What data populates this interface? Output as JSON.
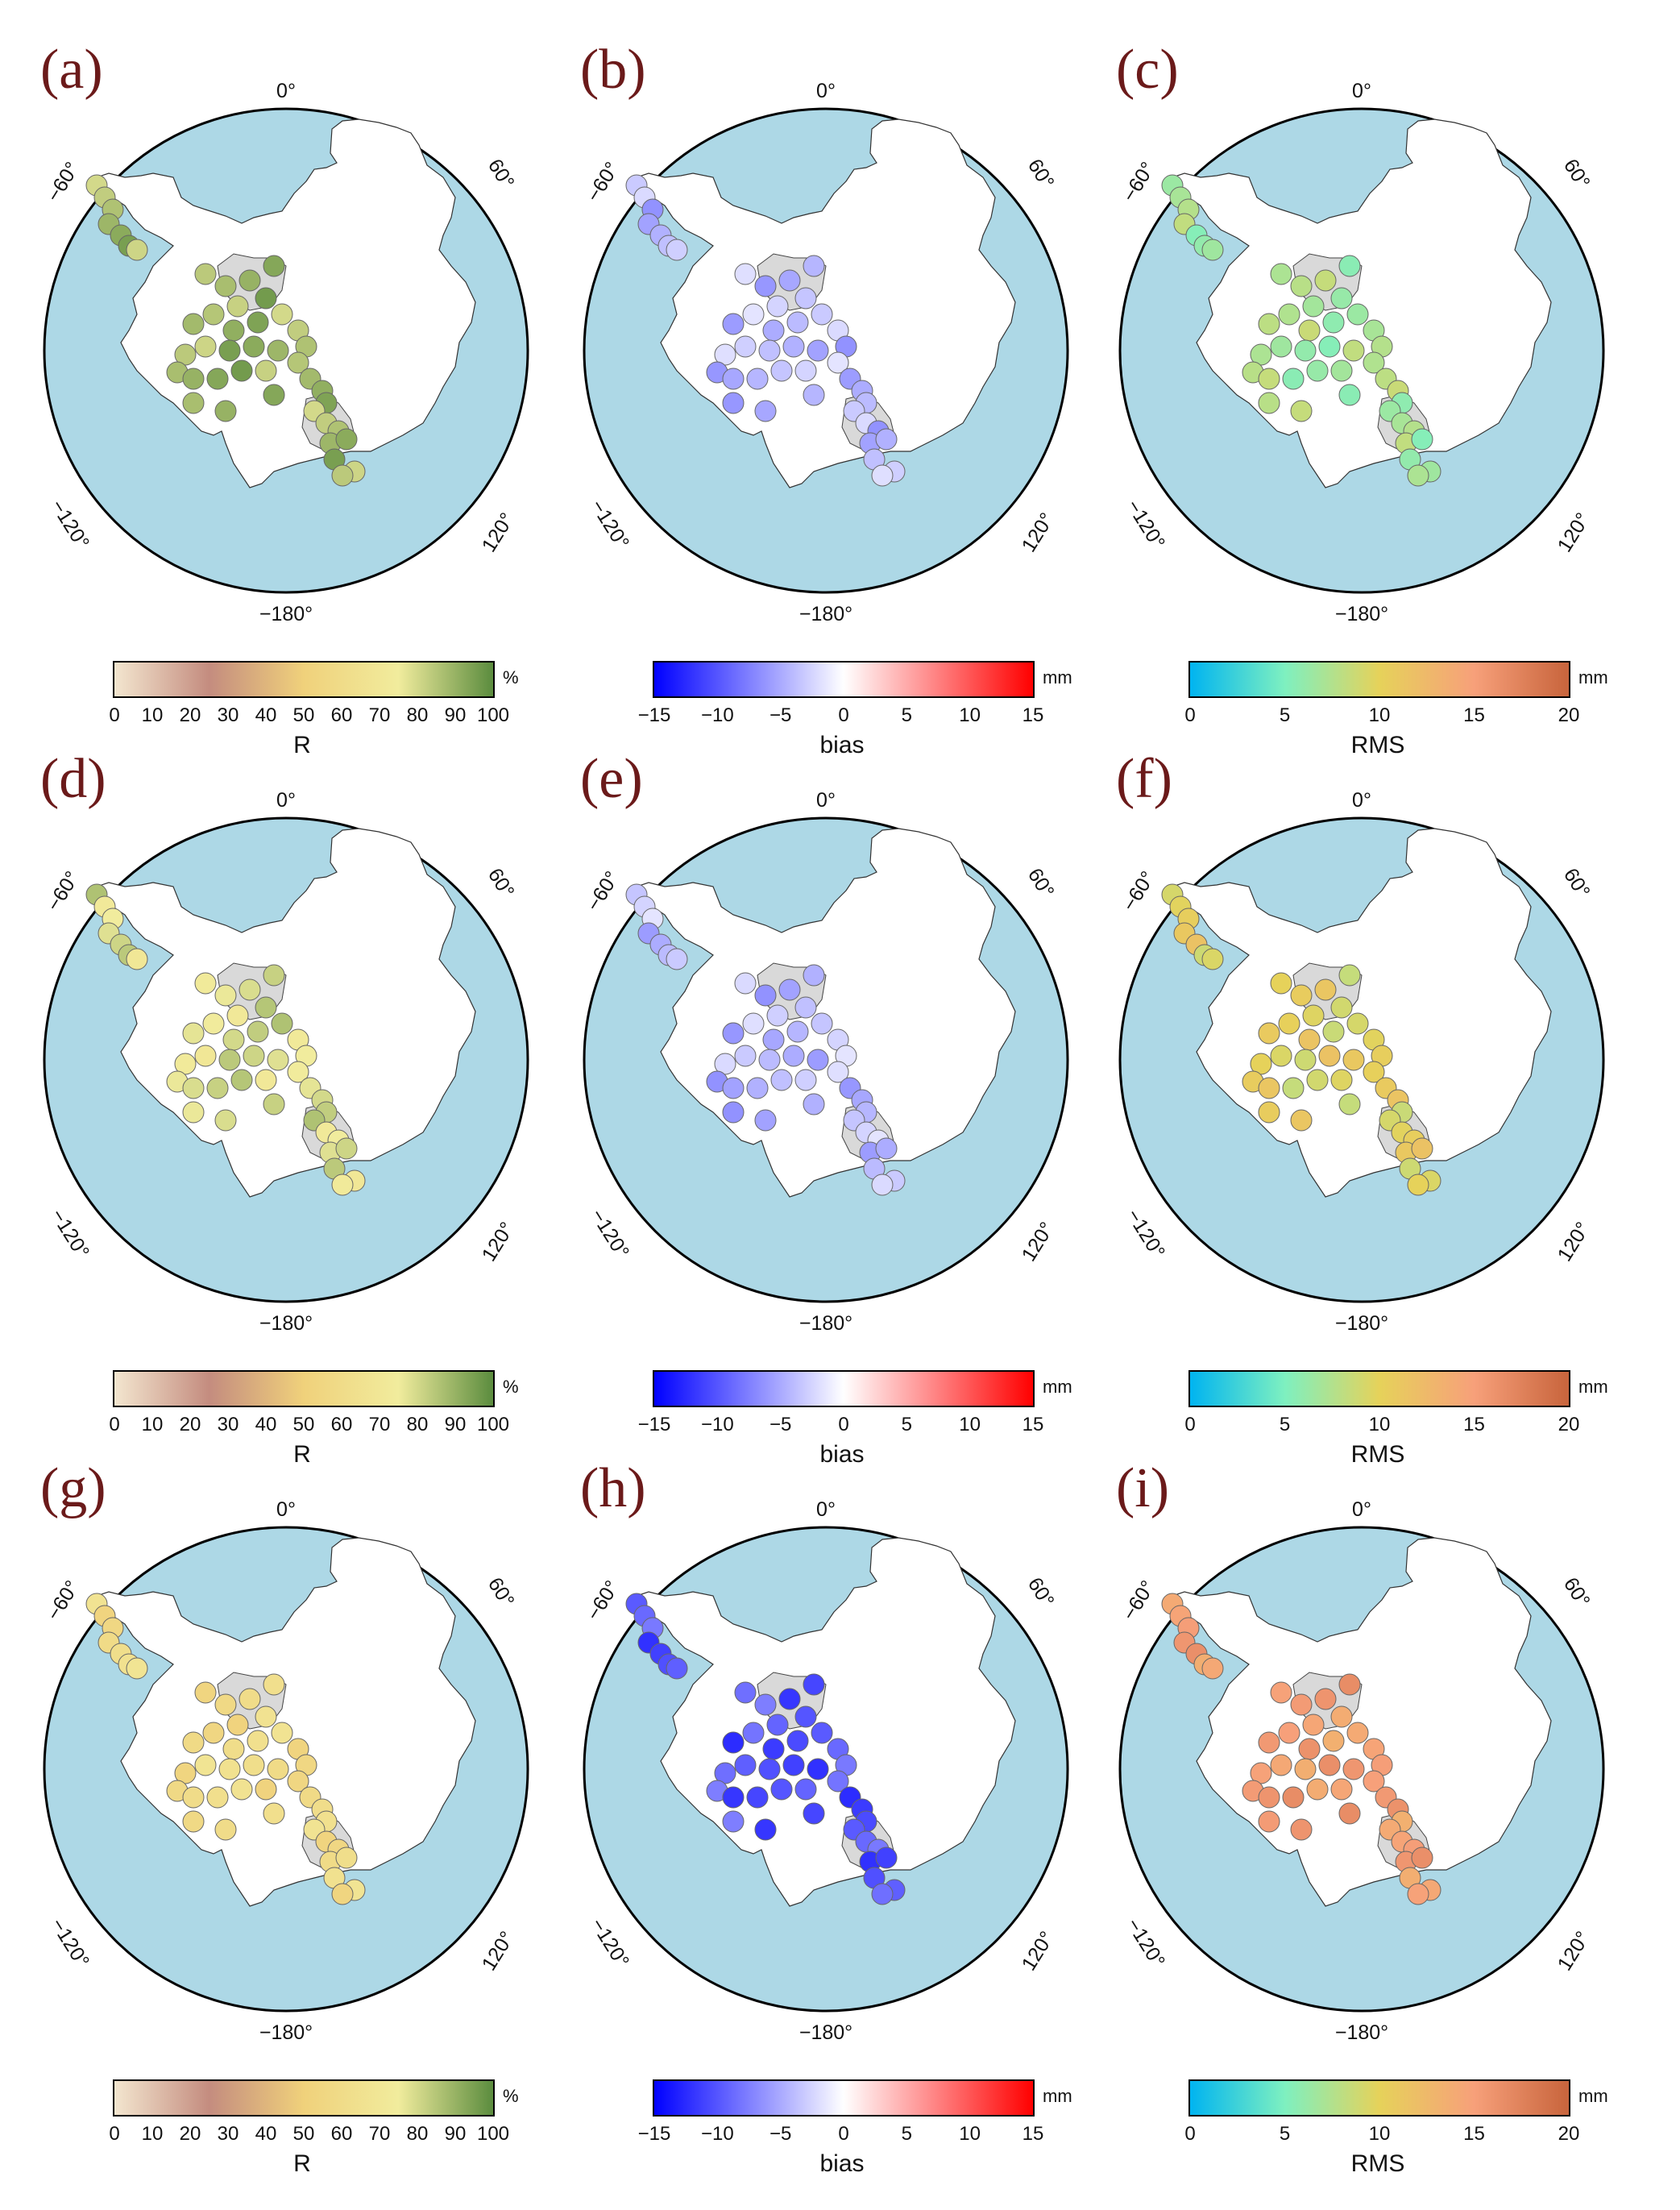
{
  "figure": {
    "labels": {
      "meridian_0": "0°",
      "meridian_180": "−180°",
      "meridian_60": "60°",
      "meridian_m60": "−60°",
      "meridian_120": "120°",
      "meridian_m120": "−120°"
    },
    "colors": {
      "ocean": "#add8e6",
      "land": "#ffffff",
      "ice_shelf": "#d9d9d9",
      "outline": "#000000"
    }
  },
  "colorbars": {
    "R": {
      "title": "R",
      "unit": "%",
      "ticks": [
        "0",
        "10",
        "20",
        "30",
        "40",
        "50",
        "60",
        "70",
        "80",
        "90",
        "100"
      ],
      "min": 0,
      "max": 100,
      "stops": [
        "#f3e6cf",
        "#c48c7f",
        "#f0d17b",
        "#f1ec9d",
        "#5b8c3e"
      ]
    },
    "bias": {
      "title": "bias",
      "unit": "mm",
      "ticks": [
        "−15",
        "−10",
        "−5",
        "0",
        "5",
        "10",
        "15"
      ],
      "min": -15,
      "max": 15,
      "stops": [
        "#0000ff",
        "#ffffff",
        "#ff0000"
      ]
    },
    "RMS": {
      "title": "RMS",
      "unit": "mm",
      "ticks": [
        "0",
        "5",
        "10",
        "15",
        "20"
      ],
      "min": 0,
      "max": 20,
      "stops": [
        "#00b4f0",
        "#7ef0c0",
        "#e6d25a",
        "#f7a07a",
        "#c8643c"
      ]
    }
  },
  "panels": [
    {
      "label": "(a)",
      "metric": "R",
      "level": 88
    },
    {
      "label": "(b)",
      "metric": "bias",
      "level": -4
    },
    {
      "label": "(c)",
      "metric": "RMS",
      "level": 7
    },
    {
      "label": "(d)",
      "metric": "R",
      "level": 78
    },
    {
      "label": "(e)",
      "metric": "bias",
      "level": -4
    },
    {
      "label": "(f)",
      "metric": "RMS",
      "level": 10
    },
    {
      "label": "(g)",
      "metric": "R",
      "level": 60
    },
    {
      "label": "(h)",
      "metric": "bias",
      "level": -10
    },
    {
      "label": "(i)",
      "metric": "RMS",
      "level": 15
    }
  ]
}
